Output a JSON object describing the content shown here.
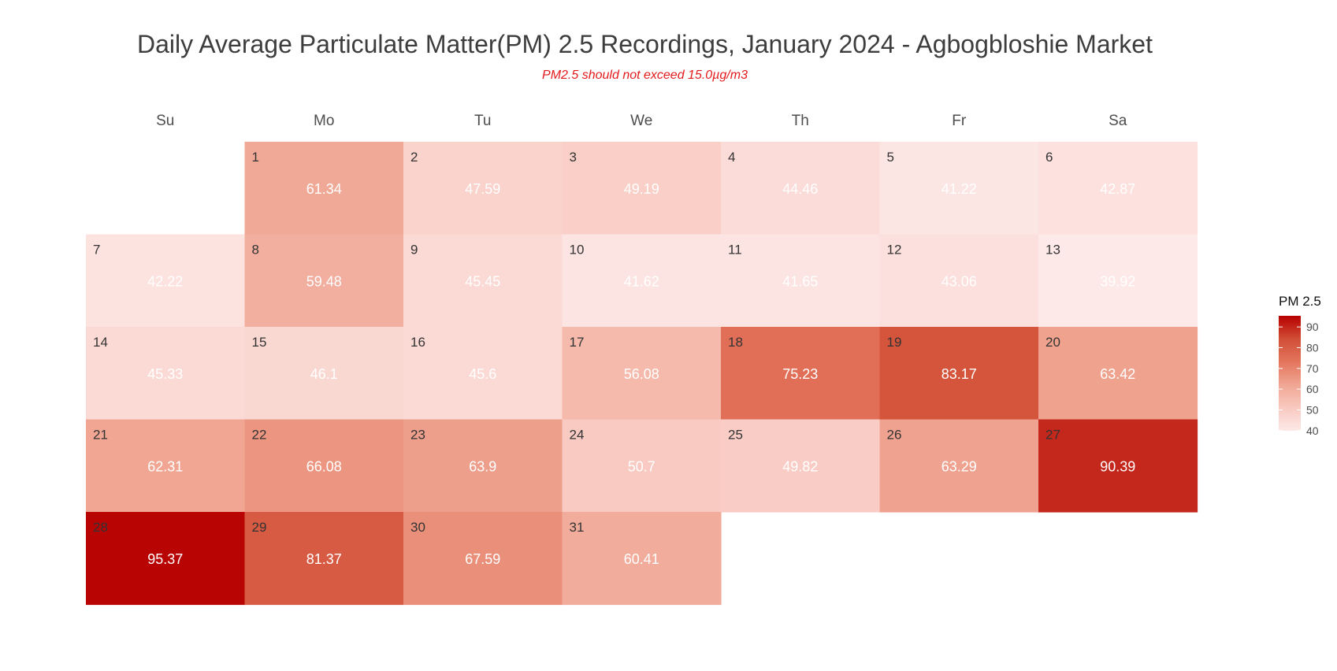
{
  "chart_data": {
    "type": "heatmap",
    "title": "Daily Average Particulate Matter(PM) 2.5 Recordings, January 2024 - Agbogbloshie Market",
    "subtitle": "PM2.5 should not exceed 15.0µg/m3",
    "weekdays": [
      "Su",
      "Mo",
      "Tu",
      "We",
      "Th",
      "Fr",
      "Sa"
    ],
    "first_weekday_index": 1,
    "days": [
      1,
      2,
      3,
      4,
      5,
      6,
      7,
      8,
      9,
      10,
      11,
      12,
      13,
      14,
      15,
      16,
      17,
      18,
      19,
      20,
      21,
      22,
      23,
      24,
      25,
      26,
      27,
      28,
      29,
      30,
      31
    ],
    "values": [
      "61.34",
      "47.59",
      "49.19",
      "44.46",
      "41.22",
      "42.87",
      "42.22",
      "59.48",
      "45.45",
      "41.62",
      "41.65",
      "43.06",
      "39.92",
      "45.33",
      "46.1",
      "45.6",
      "56.08",
      "75.23",
      "83.17",
      "63.42",
      "62.31",
      "66.08",
      "63.9",
      "50.7",
      "49.82",
      "63.29",
      "90.39",
      "95.37",
      "81.37",
      "67.59",
      "60.41"
    ],
    "legend": {
      "title": "PM 2.5",
      "range": [
        39.92,
        95.37
      ],
      "ticks": [
        40,
        50,
        60,
        70,
        80,
        90
      ],
      "placement": "right",
      "color_low": "#fde9e8",
      "color_high": "#b70000"
    },
    "colors": {
      "title": "#3d3d3d",
      "subtitle": "#e31a1c",
      "weekday_label": "#4d4d4d",
      "day_number": "#333333",
      "value_text": "#ffffff"
    }
  }
}
